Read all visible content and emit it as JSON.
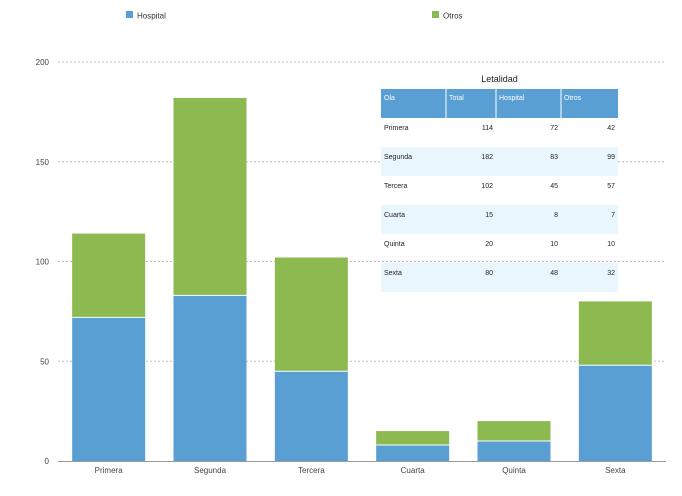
{
  "chart_data": {
    "type": "bar",
    "stacked": true,
    "categories": [
      "Primera",
      "Segunda",
      "Tercera",
      "Cuarta",
      "Quinta",
      "Sexta"
    ],
    "series": [
      {
        "name": "Hospital",
        "values": [
          72,
          83,
          45,
          8,
          10,
          48
        ],
        "color": "#5a9fd4"
      },
      {
        "name": "Otros",
        "values": [
          42,
          99,
          57,
          7,
          10,
          32
        ],
        "color": "#8cba50"
      }
    ],
    "ylim": [
      0,
      200
    ],
    "yticks": [
      0,
      50,
      100,
      150,
      200
    ],
    "grid": true,
    "legend": "top"
  },
  "table": {
    "title": "Letalidad",
    "columns": [
      "Ola",
      "Total",
      "Hospital",
      "Otros"
    ],
    "rows": [
      [
        "Primera",
        "114",
        "72",
        "42"
      ],
      [
        "Segunda",
        "182",
        "83",
        "99"
      ],
      [
        "Tercera",
        "102",
        "45",
        "57"
      ],
      [
        "Cuarta",
        "15",
        "8",
        "7"
      ],
      [
        "Quinta",
        "20",
        "10",
        "10"
      ],
      [
        "Sexta",
        "80",
        "48",
        "32"
      ]
    ],
    "header_color": "#5a9fd4",
    "stripe_color": "#eaf6fd"
  }
}
